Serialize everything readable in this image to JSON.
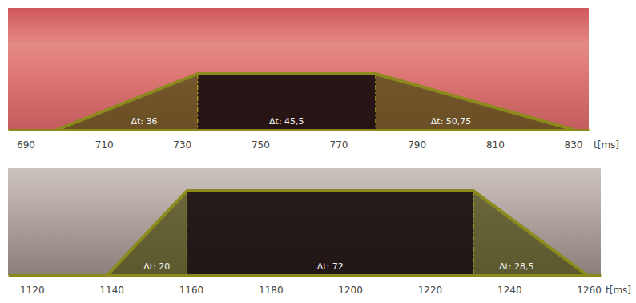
{
  "chart_data": [
    {
      "type": "area",
      "x": [
        698,
        734,
        779.5,
        830.25
      ],
      "values": [
        0,
        1,
        1,
        0
      ],
      "xlim": [
        685.5,
        834
      ],
      "xticks": [
        690,
        710,
        730,
        750,
        770,
        790,
        810,
        830
      ],
      "ylim": [
        0,
        1
      ],
      "x_label": "t[ms]",
      "annotations": [
        "Δt: 36",
        "Δt: 45,5",
        "Δt: 50,75"
      ],
      "tick_labels": "x",
      "color": "#8c8a1c"
    },
    {
      "type": "area",
      "x": [
        1139,
        1159,
        1231,
        1259.5
      ],
      "values": [
        0,
        1,
        1,
        0
      ],
      "xlim": [
        1114,
        1263
      ],
      "xticks": [
        1120,
        1140,
        1160,
        1180,
        1200,
        1220,
        1240,
        1260
      ],
      "ylim": [
        0,
        1
      ],
      "x_label": "t[ms]",
      "annotations": [
        "Δt: 20",
        "Δt: 72",
        "Δt: 28,5"
      ],
      "tick_labels": "x",
      "color": "#8c8a1c"
    }
  ]
}
